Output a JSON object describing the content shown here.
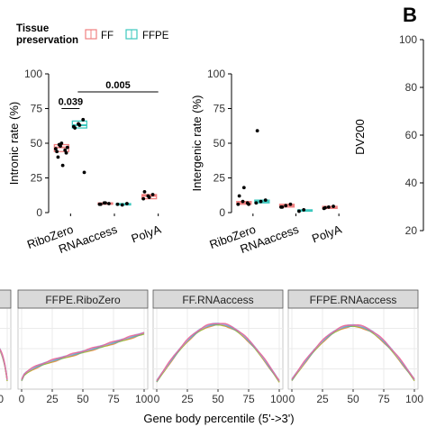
{
  "legend": {
    "title_line1": "Tissue",
    "title_line2": "preservation",
    "items": [
      {
        "label": "FF",
        "color": "#f08080"
      },
      {
        "label": "FFPE",
        "color": "#3cc8be"
      }
    ]
  },
  "panel_b_label": "B",
  "colors": {
    "ff": "#f08080",
    "ffpe": "#3cc8be",
    "strip_fill": "#d9d9d9",
    "grid": "#ebebeb"
  },
  "chart_data": [
    {
      "type": "box",
      "ylabel": "Intronic rate (%)",
      "ylim": [
        0,
        100
      ],
      "yticks": [
        "0",
        "25",
        "50",
        "75",
        "100"
      ],
      "categories": [
        "RiboZero",
        "RNAaccess",
        "PolyA"
      ],
      "series": [
        {
          "name": "FF",
          "boxes": [
            {
              "q1": 44,
              "median": 47,
              "q3": 49,
              "points": [
                46,
                48,
                45,
                44,
                50,
                43,
                40,
                34,
                47,
                49
              ]
            },
            {
              "q1": 6,
              "median": 6.5,
              "q3": 7,
              "points": [
                6,
                7,
                6.5,
                6,
                7
              ]
            },
            {
              "q1": 10,
              "median": 12,
              "q3": 13,
              "points": [
                10,
                12,
                13,
                15,
                11
              ]
            }
          ]
        },
        {
          "name": "FFPE",
          "boxes": [
            {
              "q1": 61,
              "median": 63,
              "q3": 66,
              "points": [
                62,
                64,
                67,
                61,
                63,
                29
              ]
            },
            {
              "q1": 5.5,
              "median": 6,
              "q3": 6.5,
              "points": [
                6,
                5.5,
                6.5
              ]
            },
            null
          ]
        }
      ],
      "annotations": [
        {
          "text": "0.039",
          "from": 0,
          "to": 0
        },
        {
          "text": "0.005",
          "from": 0,
          "to": 2
        }
      ]
    },
    {
      "type": "box",
      "ylabel": "Intergenic rate (%)",
      "ylim": [
        0,
        100
      ],
      "yticks": [
        "0",
        "25",
        "50",
        "75",
        "100"
      ],
      "categories": [
        "RiboZero",
        "RNAaccess",
        "PolyA"
      ],
      "series": [
        {
          "name": "FF",
          "boxes": [
            {
              "q1": 6,
              "median": 7,
              "q3": 8,
              "points": [
                6,
                8,
                7,
                12,
                18,
                6
              ]
            },
            {
              "q1": 4,
              "median": 5,
              "q3": 6,
              "points": [
                4,
                5,
                6,
                4
              ]
            },
            {
              "q1": 3,
              "median": 4,
              "q3": 4.5,
              "points": [
                3,
                4,
                4.5,
                3.5
              ]
            }
          ]
        },
        {
          "name": "FFPE",
          "boxes": [
            {
              "q1": 7,
              "median": 8,
              "q3": 9,
              "points": [
                7,
                8,
                9,
                59
              ]
            },
            {
              "q1": 1,
              "median": 1.5,
              "q3": 2,
              "points": [
                1,
                2
              ]
            },
            null
          ]
        }
      ]
    },
    {
      "type": "box",
      "ylabel": "DV200",
      "ylim": [
        20,
        100
      ],
      "yticks": [
        "20",
        "40",
        "60",
        "80",
        "100"
      ]
    },
    {
      "type": "line",
      "panels": [
        {
          "strip": "",
          "shape": "tail"
        },
        {
          "strip": "FFPE.RiboZero",
          "shape": "ribo"
        },
        {
          "strip": "FF.RNAaccess",
          "shape": "dome"
        },
        {
          "strip": "FFPE.RNAaccess",
          "shape": "dome2"
        }
      ],
      "xlabel": "Gene body percentile (5'->3')",
      "xticks": [
        "0",
        "25",
        "50",
        "75",
        "100"
      ],
      "partial_tick": "100",
      "line_colors": [
        "#e8833a",
        "#c9a227",
        "#8fbf3a",
        "#4db6ac",
        "#6fa8dc",
        "#b39ddb",
        "#f06292"
      ]
    }
  ]
}
